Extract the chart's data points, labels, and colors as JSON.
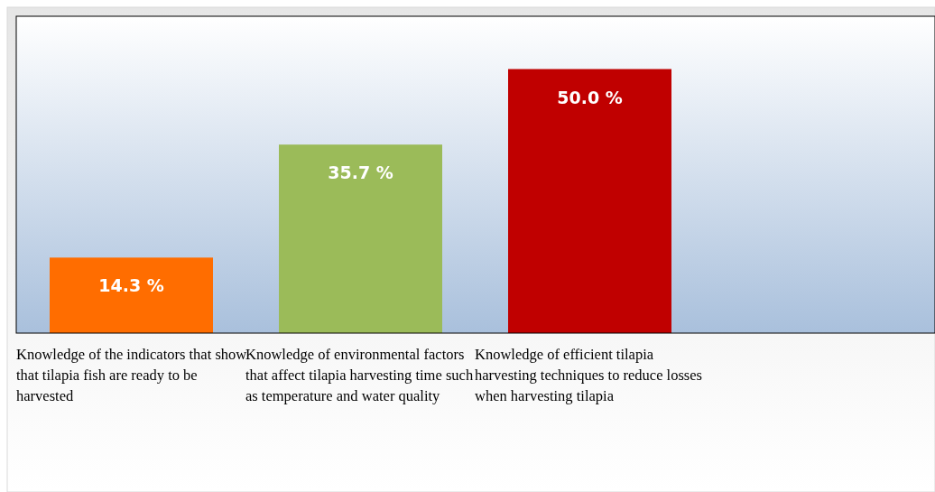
{
  "chart_data": {
    "type": "bar",
    "categories": [
      "Knowledge of the indicators that show that tilapia fish are ready to be harvested",
      "Knowledge of environmental factors that affect tilapia harvesting time such as temperature and water quality",
      "Knowledge of efficient tilapia harvesting techniques to reduce losses when harvesting tilapia"
    ],
    "values": [
      14.3,
      35.7,
      50.0
    ],
    "colors": [
      "#ff6d00",
      "#9bbb59",
      "#c00000"
    ],
    "value_labels": [
      "14.3 %",
      "35.7 %",
      "50.0 %"
    ],
    "ylim": [
      0,
      60
    ]
  }
}
